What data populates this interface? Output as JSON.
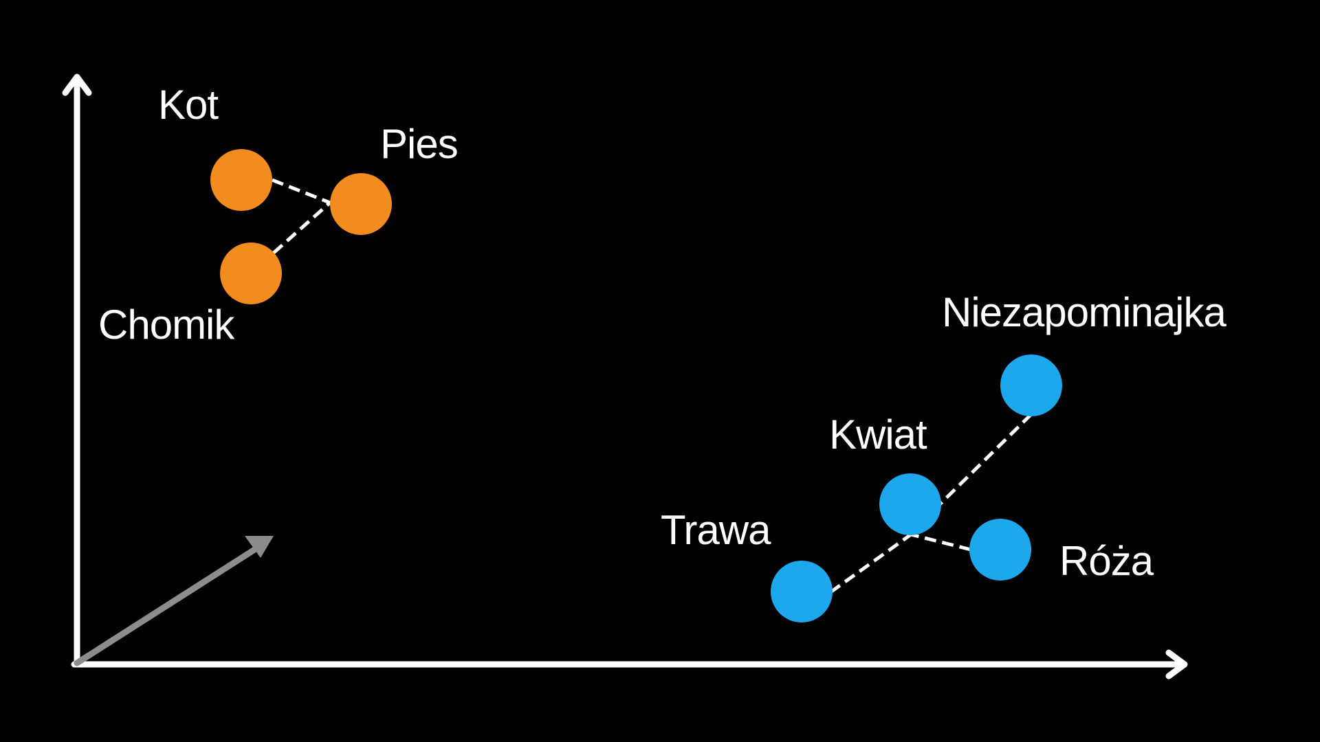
{
  "colors": {
    "background": "#000000",
    "axes": "#ffffff",
    "vector": "#8c8c8c",
    "animals": "#f28c1e",
    "plants": "#1da8ee",
    "links": "#ffffff",
    "text": "#ffffff"
  },
  "groups": [
    {
      "id": "animals",
      "words": [
        {
          "id": "kot",
          "label": "Kot"
        },
        {
          "id": "pies",
          "label": "Pies"
        },
        {
          "id": "chomik",
          "label": "Chomik"
        }
      ]
    },
    {
      "id": "plants",
      "words": [
        {
          "id": "niezapominajka",
          "label": "Niezapominajka"
        },
        {
          "id": "kwiat",
          "label": "Kwiat"
        },
        {
          "id": "trawa",
          "label": "Trawa"
        },
        {
          "id": "roza",
          "label": "Róża"
        }
      ]
    }
  ]
}
